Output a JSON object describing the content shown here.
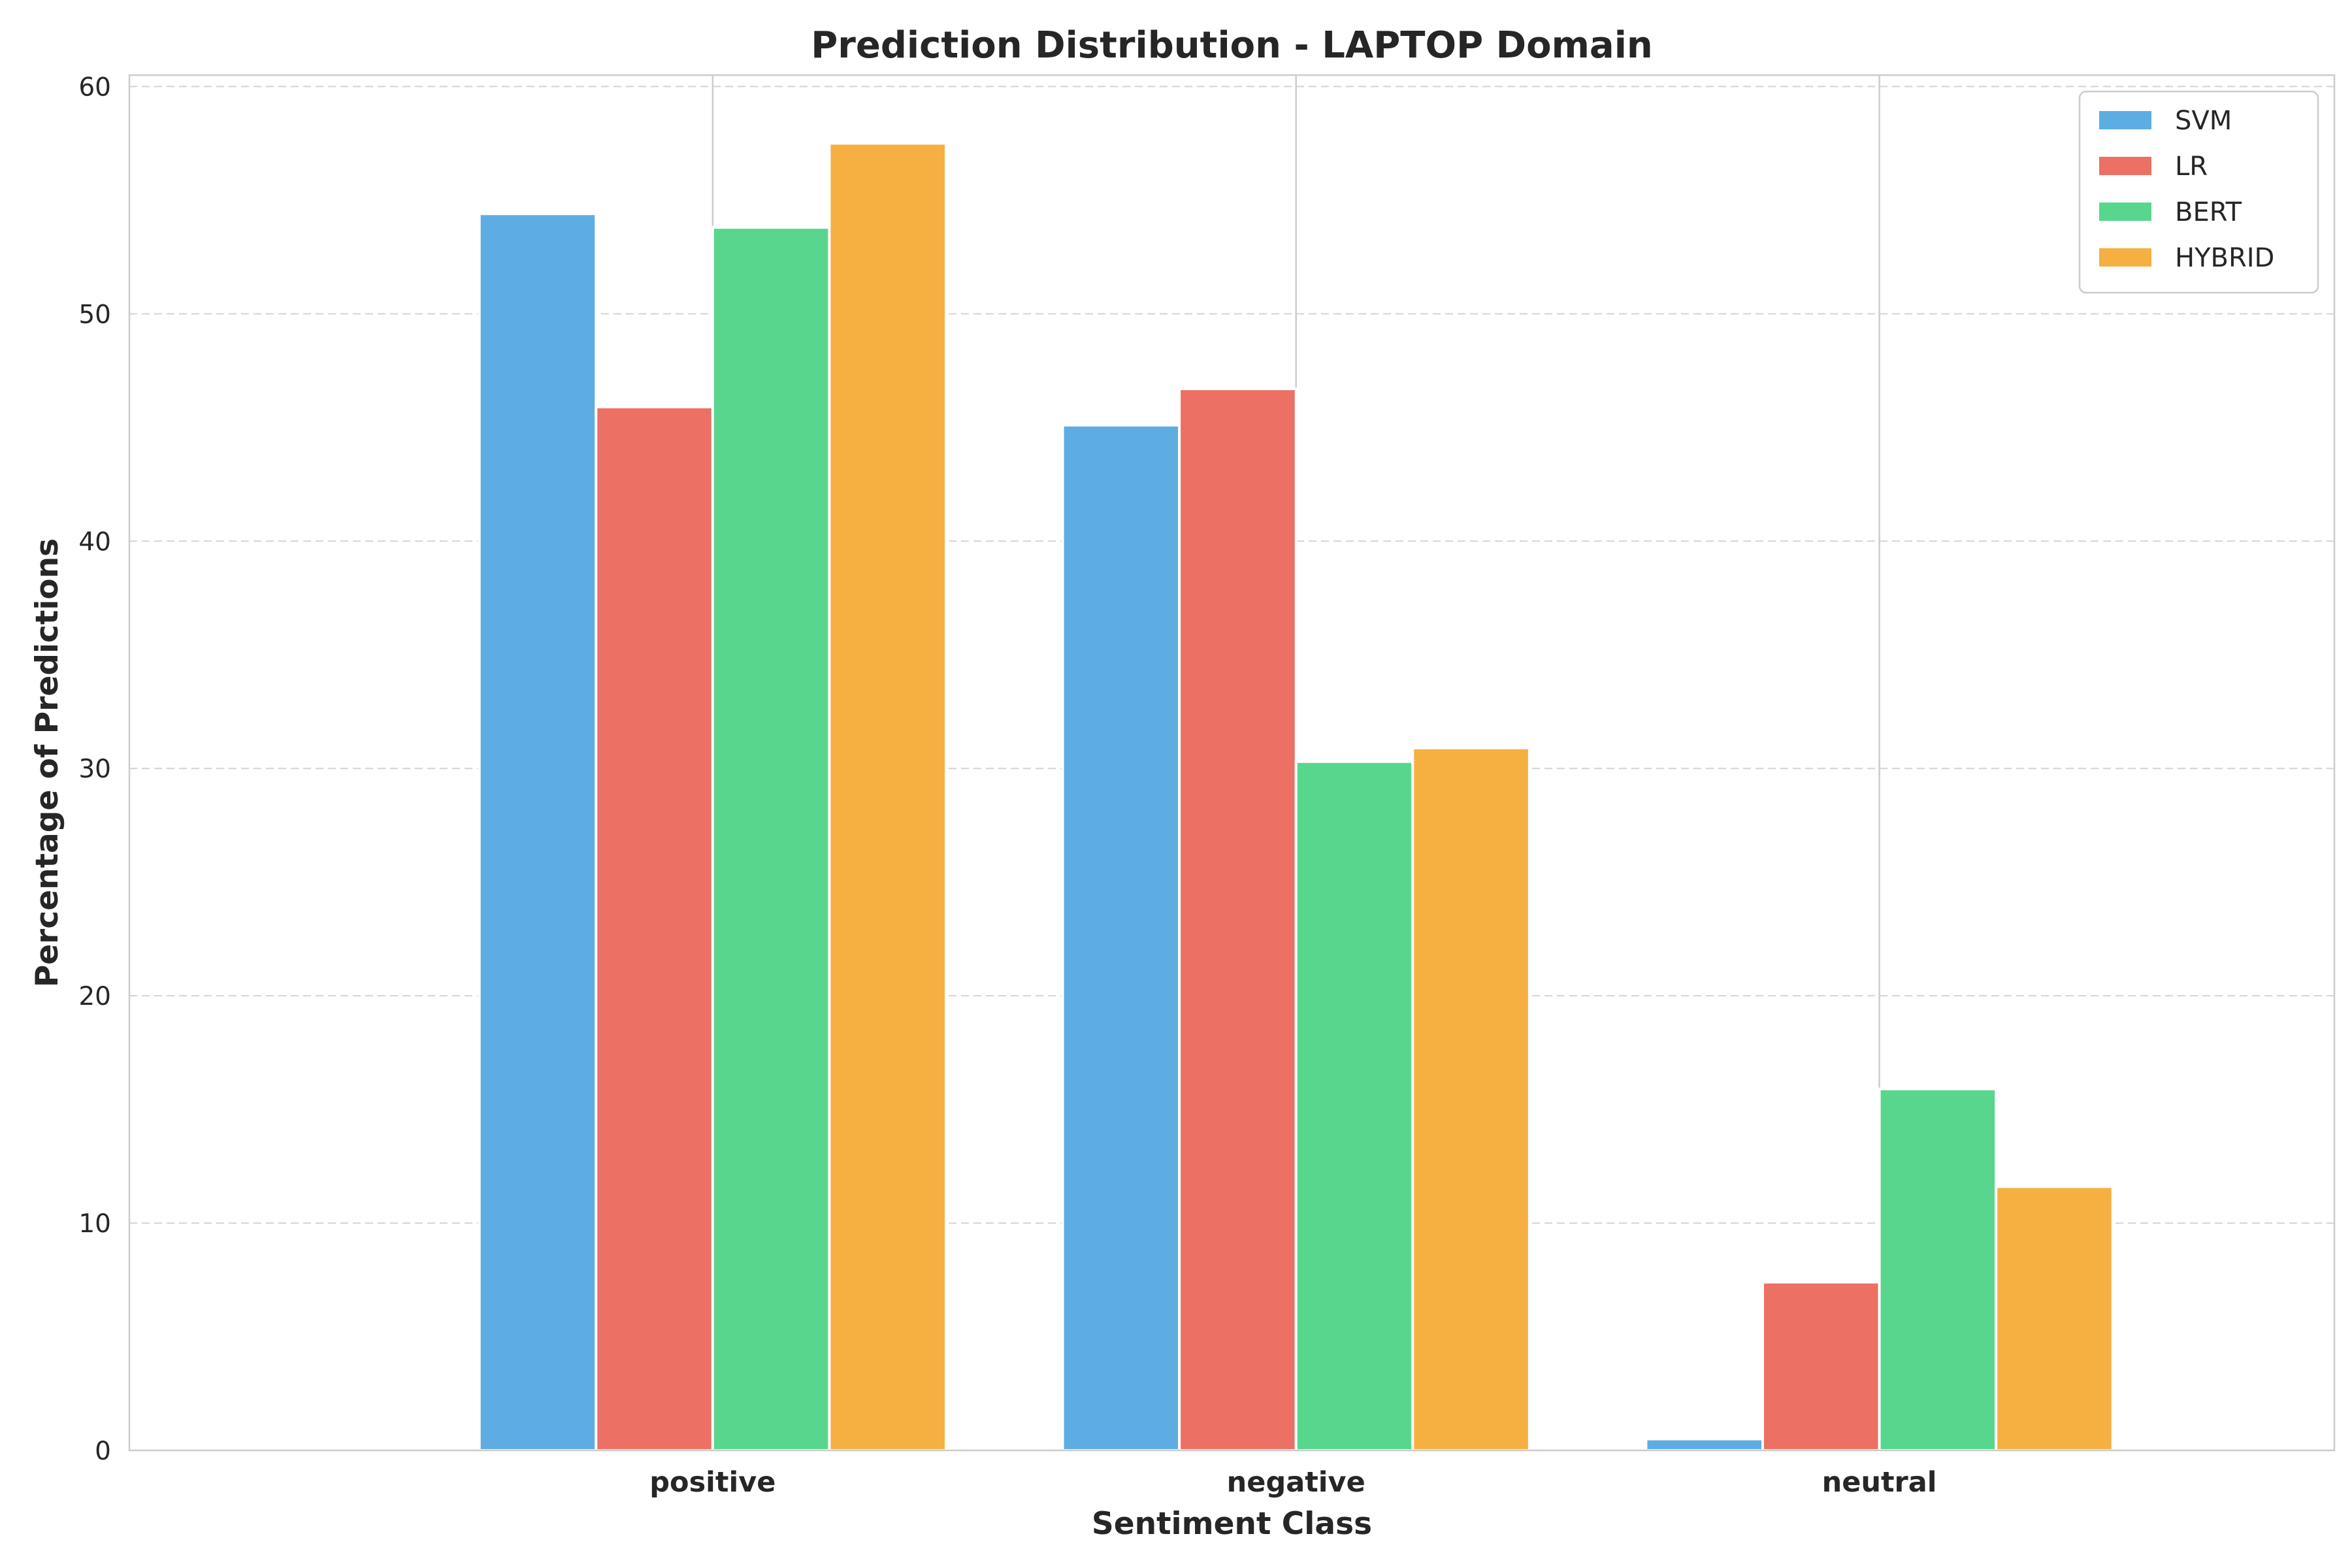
{
  "chart_data": {
    "type": "bar",
    "title": "Prediction Distribution - LAPTOP Domain",
    "xlabel": "Sentiment Class",
    "ylabel": "Percentage of Predictions",
    "categories": [
      "positive",
      "negative",
      "neutral"
    ],
    "series": [
      {
        "name": "SVM",
        "color": "#5DADE2",
        "values": [
          54.4,
          45.1,
          0.5
        ]
      },
      {
        "name": "LR",
        "color": "#EC7063",
        "values": [
          45.9,
          46.7,
          7.4
        ]
      },
      {
        "name": "BERT",
        "color": "#58D68D",
        "values": [
          53.8,
          30.3,
          15.9
        ]
      },
      {
        "name": "HYBRID",
        "color": "#F5B041",
        "values": [
          57.5,
          30.9,
          11.6
        ]
      }
    ],
    "ylim": [
      0,
      60.5
    ],
    "yticks": [
      0,
      10,
      20,
      30,
      40,
      50,
      60
    ],
    "grid": true,
    "legend_position": "top-right"
  }
}
